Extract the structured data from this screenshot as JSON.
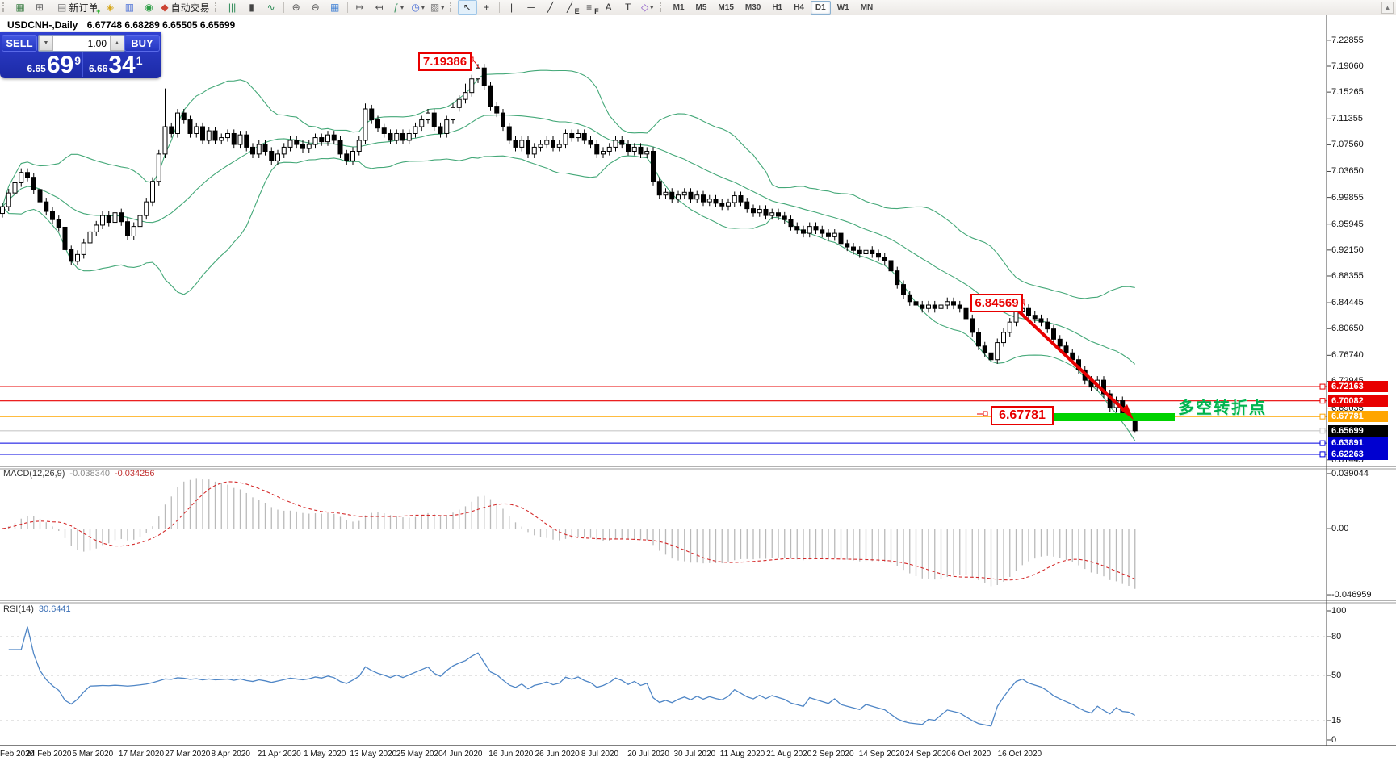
{
  "chart_header": {
    "symbol_title": "USDCNH-,Daily",
    "ohlc": "6.67748 6.68289 6.65505 6.65699"
  },
  "trade_panel": {
    "sell_label": "SELL",
    "buy_label": "BUY",
    "volume": "1.00",
    "sell_price_small": "6.65",
    "sell_price_big": "69",
    "sell_price_sup": "9",
    "buy_price_small": "6.66",
    "buy_price_big": "34",
    "buy_price_sup": "1"
  },
  "toolbar": {
    "groups": [
      {
        "grip": true,
        "items": [
          {
            "name": "indicators-window-icon",
            "glyph": "▦",
            "color": "#3a7d44"
          },
          {
            "name": "data-window-icon",
            "glyph": "⊞",
            "color": "#666"
          }
        ]
      },
      {
        "sep": true,
        "items": [
          {
            "name": "new-order-icon",
            "glyph": "▤",
            "color": "#777",
            "badge": "+",
            "badge_color": "#1faa1f",
            "label": "新订单"
          },
          {
            "name": "history-center-icon",
            "glyph": "◈",
            "color": "#d6a719"
          },
          {
            "name": "terminal-icon",
            "glyph": "▥",
            "color": "#4a6fd6"
          },
          {
            "name": "signals-icon",
            "glyph": "◉",
            "color": "#2e9e46"
          },
          {
            "name": "autotrading-icon",
            "glyph": "◆",
            "color": "#cc4433",
            "label": "自动交易"
          }
        ]
      },
      {
        "grip": true,
        "items": [
          {
            "name": "bar-chart-icon",
            "glyph": "|||",
            "color": "#2e8b57"
          },
          {
            "name": "candlestick-chart-icon",
            "glyph": "▮",
            "color": "#444"
          },
          {
            "name": "line-chart-icon",
            "glyph": "∿",
            "color": "#2e8b57"
          }
        ]
      },
      {
        "sep": true,
        "items": [
          {
            "name": "zoom-in-icon",
            "glyph": "⊕",
            "color": "#555"
          },
          {
            "name": "zoom-out-icon",
            "glyph": "⊖",
            "color": "#555"
          },
          {
            "name": "tile-windows-icon",
            "glyph": "▦",
            "color": "#3a7dd4"
          }
        ]
      },
      {
        "sep": true,
        "items": [
          {
            "name": "auto-scroll-icon",
            "glyph": "↦",
            "color": "#555"
          },
          {
            "name": "chart-shift-icon",
            "glyph": "↤",
            "color": "#555"
          },
          {
            "name": "indicators-add-icon",
            "glyph": "ƒ",
            "color": "#2e8b57",
            "dropdown": true
          },
          {
            "name": "periods-icon",
            "glyph": "◷",
            "color": "#4a6fd6",
            "dropdown": true
          },
          {
            "name": "templates-icon",
            "glyph": "▨",
            "color": "#777",
            "dropdown": true
          }
        ]
      },
      {
        "grip": true,
        "items": [
          {
            "name": "cursor-icon",
            "glyph": "↖",
            "color": "#333",
            "active": true
          },
          {
            "name": "crosshair-icon",
            "glyph": "+",
            "color": "#333"
          }
        ]
      },
      {
        "sep": true,
        "items": [
          {
            "name": "vertical-line-icon",
            "glyph": "|",
            "color": "#333"
          },
          {
            "name": "horizontal-line-icon",
            "glyph": "─",
            "color": "#333"
          },
          {
            "name": "trendline-icon",
            "glyph": "╱",
            "color": "#333"
          },
          {
            "name": "equidistant-channel-icon",
            "glyph": "╱",
            "badge": "E",
            "badge_color": "#333",
            "color": "#333"
          },
          {
            "name": "fibonacci-icon",
            "glyph": "≡",
            "badge": "F",
            "badge_color": "#333",
            "color": "#333"
          },
          {
            "name": "text-icon",
            "glyph": "A",
            "color": "#333"
          },
          {
            "name": "text-label-icon",
            "glyph": "T",
            "color": "#333"
          },
          {
            "name": "arrows-icon",
            "glyph": "◇",
            "color": "#8a56c8",
            "dropdown": true
          }
        ]
      }
    ],
    "timeframes": [
      "M1",
      "M5",
      "M15",
      "M30",
      "H1",
      "H4",
      "D1",
      "W1",
      "MN"
    ],
    "active_timeframe": "D1",
    "overflow_glyph": "▲"
  },
  "price_axis": {
    "labels": [
      "7.22855",
      "7.19060",
      "7.15265",
      "7.11355",
      "7.07560",
      "7.03650",
      "6.99855",
      "6.95945",
      "6.92150",
      "6.88355",
      "6.84445",
      "6.80650",
      "6.76740",
      "6.72945",
      "6.69035",
      "6.61445"
    ],
    "badges": [
      {
        "text": "6.72163",
        "price": 6.72163,
        "bg": "#e80000",
        "line": "#e80000"
      },
      {
        "text": "6.70082",
        "price": 6.70082,
        "bg": "#e80000",
        "line": "#e80000"
      },
      {
        "text": "6.67781",
        "price": 6.67781,
        "bg": "#ffa500",
        "line": "#ffa500"
      },
      {
        "text": "6.65699",
        "price": 6.65699,
        "bg": "#000000",
        "line": "#c8c8c8"
      },
      {
        "text": "6.63891",
        "price": 6.63891,
        "bg": "#0000d0",
        "line": "#0000e0"
      },
      {
        "text": "6.62263",
        "price": 6.62263,
        "bg": "#0000d0",
        "line": "#0000e0"
      }
    ]
  },
  "macd_panel": {
    "label": "MACD(12,26,9)",
    "value1": "-0.038340",
    "value2": "-0.034256",
    "scale": [
      {
        "text": "0.039044",
        "v": 0.039044
      },
      {
        "text": "0.00",
        "v": 0.0
      },
      {
        "text": "-0.046959",
        "v": -0.046959
      }
    ]
  },
  "rsi_panel": {
    "label": "RSI(14)",
    "value": "30.6441",
    "scale": [
      {
        "text": "100",
        "v": 100
      },
      {
        "text": "80",
        "v": 80
      },
      {
        "text": "50",
        "v": 50
      },
      {
        "text": "15",
        "v": 15
      },
      {
        "text": "0",
        "v": 0
      }
    ],
    "dashed_levels": [
      80,
      50,
      15
    ]
  },
  "date_axis": [
    "Feb 2020",
    "24 Feb 2020",
    "5 Mar 2020",
    "17 Mar 2020",
    "27 Mar 2020",
    "8 Apr 2020",
    "21 Apr 2020",
    "1 May 2020",
    "13 May 2020",
    "25 May 2020",
    "4 Jun 2020",
    "16 Jun 2020",
    "26 Jun 2020",
    "8 Jul 2020",
    "20 Jul 2020",
    "30 Jul 2020",
    "11 Aug 2020",
    "21 Aug 2020",
    "2 Sep 2020",
    "14 Sep 2020",
    "24 Sep 2020",
    "6 Oct 2020",
    "16 Oct 2020"
  ],
  "annotations": {
    "peak_label": "7.19386",
    "swing_label": "6.84569",
    "support_label": "6.67781",
    "cn_note": "多空转折点"
  },
  "colors": {
    "band_green": "#44a878",
    "macd_gray": "#b9b9b9",
    "signal_red": "#d42a2a",
    "rsi_blue": "#4f86c6",
    "bar_green": "#00d200",
    "arrow_red": "#e80000",
    "level_dash": "#c8c8c8",
    "note_green": "#00b44e"
  },
  "chart_data": {
    "type": "candlestick",
    "symbol": "USDCNH",
    "timeframe": "Daily",
    "indicators": [
      "Bollinger Bands(20,2)",
      "MACD(12,26,9)",
      "RSI(14)"
    ],
    "y_axis_range": [
      6.6048,
      7.2591
    ],
    "macd_range": [
      -0.0498,
      0.0413
    ],
    "rsi_range": [
      0,
      100
    ],
    "first_open": 6.975,
    "wick": 0.006,
    "closes": [
      6.985,
      7.005,
      7.02,
      7.035,
      7.028,
      7.01,
      6.992,
      6.978,
      6.966,
      6.955,
      6.922,
      6.905,
      6.915,
      6.932,
      6.948,
      6.958,
      6.972,
      6.962,
      6.976,
      6.963,
      6.942,
      6.956,
      6.972,
      6.992,
      7.022,
      7.062,
      7.102,
      7.092,
      7.122,
      7.112,
      7.092,
      7.102,
      7.082,
      7.096,
      7.082,
      7.086,
      7.092,
      7.076,
      7.09,
      7.072,
      7.062,
      7.076,
      7.066,
      7.052,
      7.062,
      7.072,
      7.082,
      7.076,
      7.07,
      7.076,
      7.086,
      7.08,
      7.09,
      7.082,
      7.062,
      7.052,
      7.066,
      7.082,
      7.128,
      7.112,
      7.1,
      7.092,
      7.082,
      7.092,
      7.082,
      7.092,
      7.102,
      7.112,
      7.122,
      7.102,
      7.092,
      7.112,
      7.13,
      7.142,
      7.152,
      7.172,
      7.188,
      7.162,
      7.132,
      7.122,
      7.102,
      7.082,
      7.072,
      7.082,
      7.062,
      7.072,
      7.076,
      7.082,
      7.072,
      7.076,
      7.092,
      7.086,
      7.092,
      7.082,
      7.076,
      7.062,
      7.066,
      7.072,
      7.082,
      7.076,
      7.066,
      7.072,
      7.062,
      7.066,
      7.022,
      7.002,
      7.006,
      6.996,
      7.002,
      7.006,
      6.996,
      7.002,
      6.992,
      6.996,
      6.99,
      6.986,
      6.991,
      7.001,
      6.992,
      6.982,
      6.976,
      6.981,
      6.972,
      6.976,
      6.971,
      6.966,
      6.956,
      6.951,
      6.946,
      6.956,
      6.951,
      6.946,
      6.941,
      6.946,
      6.931,
      6.926,
      6.921,
      6.916,
      6.921,
      6.916,
      6.911,
      6.906,
      6.891,
      6.871,
      6.856,
      6.846,
      6.841,
      6.836,
      6.841,
      6.836,
      6.841,
      6.846,
      6.841,
      6.836,
      6.821,
      6.801,
      6.781,
      6.771,
      6.761,
      6.786,
      6.801,
      6.816,
      6.831,
      6.836,
      6.826,
      6.821,
      6.816,
      6.806,
      6.791,
      6.781,
      6.771,
      6.761,
      6.746,
      6.731,
      6.721,
      6.731,
      6.711,
      6.691,
      6.701,
      6.681,
      6.677,
      6.65699
    ],
    "overrides": {
      "10": {
        "low": 6.882
      },
      "26": {
        "high": 7.158
      },
      "58": {
        "high": 7.136
      },
      "74": {
        "high": 7.165
      },
      "76": {
        "high": 7.19386
      },
      "163": {
        "high": 6.84569
      },
      "181": {
        "open": 6.67748,
        "high": 6.68289,
        "low": 6.65505
      }
    }
  }
}
